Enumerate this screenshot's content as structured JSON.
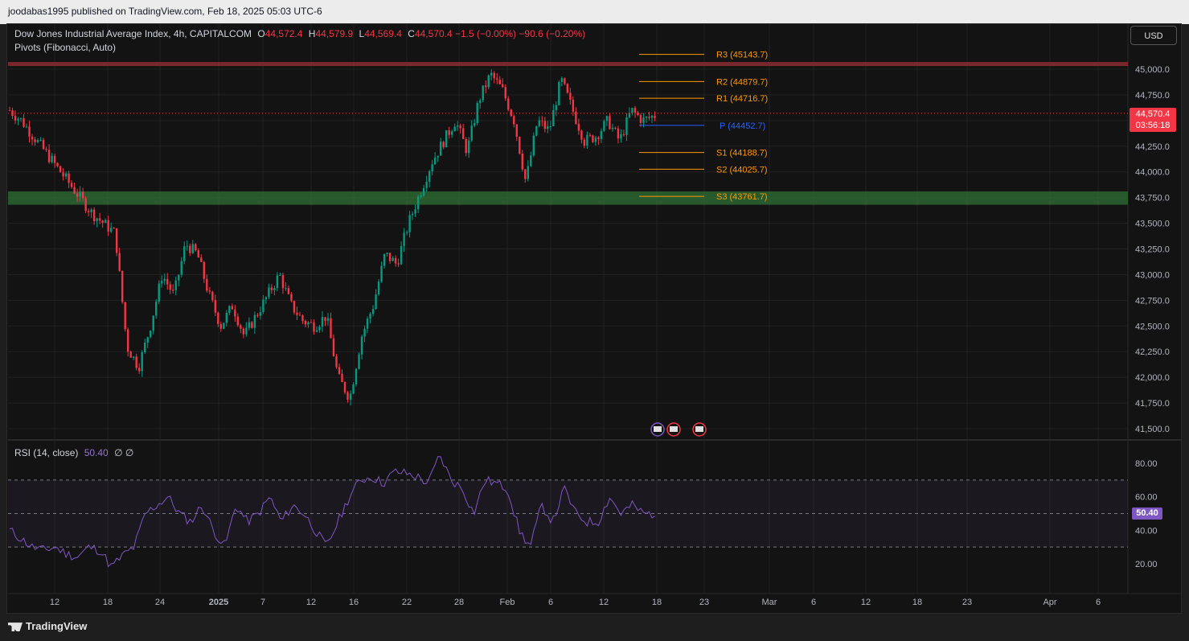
{
  "header": {
    "published": "joodabas1995 published on TradingView.com, Feb 18, 2025 05:03 UTC-6"
  },
  "legend": {
    "symbol": "Dow Jones Industrial Average Index, 4h, CAPITALCOM",
    "o_label": "O",
    "o": "44,572.4",
    "h_label": "H",
    "h": "44,579.9",
    "l_label": "L",
    "l": "44,569.4",
    "c_label": "C",
    "c": "44,570.4",
    "change": "−1.5 (−0.00%)",
    "change2": "−90.6 (−0.20%)",
    "indicator": "Pivots (Fibonacci, Auto)"
  },
  "currency": "USD",
  "price_tag": {
    "price": "44,570.4",
    "timer": "03:56:18"
  },
  "rsi": {
    "title": "RSI (14, close)",
    "value": "50.40",
    "extra": "∅ ∅",
    "tag": "50.40"
  },
  "footer": {
    "brand": "TradingView"
  },
  "colors": {
    "up": "#089981",
    "down": "#f23645",
    "pivot": "#ff9800",
    "pivotP": "#2962ff",
    "rsi": "#7e57c2"
  },
  "chart_data": {
    "type": "candlestick",
    "timeframe": "4h",
    "y_axis_labels": [
      "45,000.0",
      "44,750.0",
      "44,500.0",
      "44,250.0",
      "44,000.0",
      "43,750.0",
      "43,500.0",
      "43,250.0",
      "43,000.0",
      "42,750.0",
      "42,500.0",
      "42,250.0",
      "42,000.0",
      "41,750.0",
      "41,500.0"
    ],
    "y_axis_values": [
      45000,
      44750,
      44500,
      44250,
      44000,
      43750,
      43500,
      43250,
      43000,
      42750,
      42500,
      42250,
      42000,
      41750,
      41500
    ],
    "x_axis_labels": [
      "12",
      "18",
      "24",
      "2025",
      "7",
      "12",
      "16",
      "22",
      "28",
      "Feb",
      "6",
      "12",
      "18",
      "23",
      "Mar",
      "6",
      "12",
      "18",
      "23",
      "Apr",
      "6"
    ],
    "pivots": [
      {
        "label": "R3",
        "value": "(45143.7)",
        "level": 45143.7
      },
      {
        "label": "R2",
        "value": "(44879.7)",
        "level": 44879.7
      },
      {
        "label": "R1",
        "value": "(44716.7)",
        "level": 44716.7
      },
      {
        "label": "P",
        "value": "(44452.7)",
        "level": 44452.7
      },
      {
        "label": "S1",
        "value": "(44188.7)",
        "level": 44188.7
      },
      {
        "label": "S2",
        "value": "(44025.7)",
        "level": 44025.7
      },
      {
        "label": "S3",
        "value": "(43761.7)",
        "level": 43761.7
      }
    ],
    "resistance_zone": [
      45030,
      45070
    ],
    "support_zone": [
      43680,
      43810
    ],
    "last_price": 44570.4,
    "approx_closes": [
      44600,
      44500,
      44350,
      44200,
      44050,
      43900,
      43750,
      43600,
      43500,
      43400,
      42300,
      42100,
      42500,
      43000,
      42800,
      43300,
      43200,
      42800,
      42500,
      42700,
      42400,
      42600,
      42800,
      43000,
      42700,
      42550,
      42500,
      42600,
      42000,
      41800,
      42400,
      42700,
      43200,
      43100,
      43500,
      43800,
      44100,
      44300,
      44500,
      44200,
      44700,
      44950,
      44800,
      44500,
      43900,
      44500,
      44400,
      44900,
      44600,
      44300,
      44350,
      44500,
      44300,
      44600,
      44500,
      44550
    ],
    "rsi_axis_labels": [
      "80.00",
      "60.00",
      "40.00",
      "20.00"
    ],
    "rsi_axis_values": [
      80,
      60,
      40,
      20
    ],
    "rsi_bands": {
      "upper": 70,
      "middle": 50,
      "lower": 30
    },
    "approx_rsi": [
      40,
      35,
      30,
      28,
      30,
      26,
      24,
      30,
      28,
      18,
      25,
      30,
      50,
      55,
      60,
      50,
      45,
      55,
      40,
      30,
      55,
      45,
      50,
      60,
      45,
      55,
      50,
      40,
      30,
      45,
      60,
      70,
      72,
      68,
      75,
      74,
      72,
      68,
      85,
      70,
      65,
      50,
      70,
      68,
      65,
      40,
      30,
      55,
      45,
      65,
      50,
      45,
      45,
      60,
      50,
      55,
      50,
      50
    ]
  }
}
